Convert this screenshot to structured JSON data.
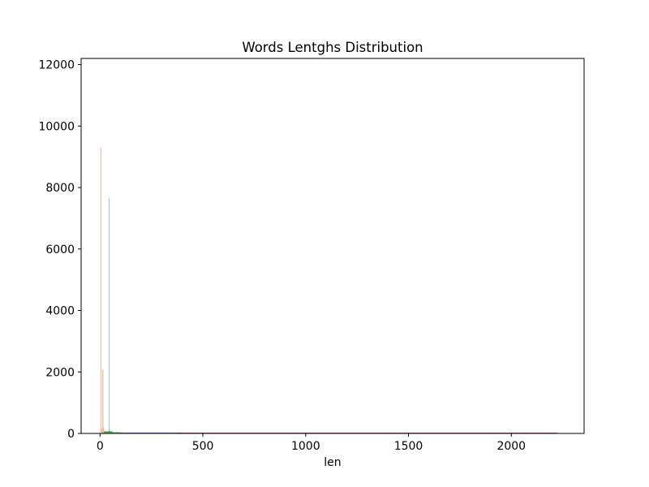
{
  "chart_data": {
    "type": "bar",
    "title": "Words Lentghs Distribution",
    "xlabel": "len",
    "ylabel": "",
    "xlim": [
      -92,
      2354
    ],
    "ylim": [
      0,
      12200
    ],
    "xticks": [
      0,
      500,
      1000,
      1500,
      2000
    ],
    "yticks": [
      0,
      2000,
      4000,
      6000,
      8000,
      10000,
      12000
    ],
    "grid": false,
    "legend": "none",
    "series": [
      {
        "color": "#e8a598",
        "bin_width": 4,
        "bars": [
          {
            "x": 2,
            "value": 9300
          },
          {
            "x": 6,
            "value": 150
          },
          {
            "x": 10,
            "value": 40
          }
        ]
      },
      {
        "color": "#e89a60",
        "bin_width": 4,
        "bars": [
          {
            "x": 12,
            "value": 2080
          },
          {
            "x": 16,
            "value": 180
          },
          {
            "x": 20,
            "value": 60
          }
        ]
      },
      {
        "color": "#7cc3dc",
        "bin_width": 4,
        "bars": [
          {
            "x": 42,
            "value": 7650
          },
          {
            "x": 46,
            "value": 100
          }
        ]
      },
      {
        "color": "#2ca02c",
        "bin_width": 40,
        "bars": [
          {
            "x": 20,
            "value": 70
          },
          {
            "x": 60,
            "value": 40
          },
          {
            "x": 100,
            "value": 15
          }
        ]
      },
      {
        "color": "#6a5acd",
        "bin_width": 300,
        "bars": [
          {
            "x": 100,
            "value": 30
          }
        ]
      },
      {
        "color": "#d62728",
        "bin_width": 1850,
        "bars": [
          {
            "x": 375,
            "value": 25
          }
        ]
      }
    ]
  }
}
